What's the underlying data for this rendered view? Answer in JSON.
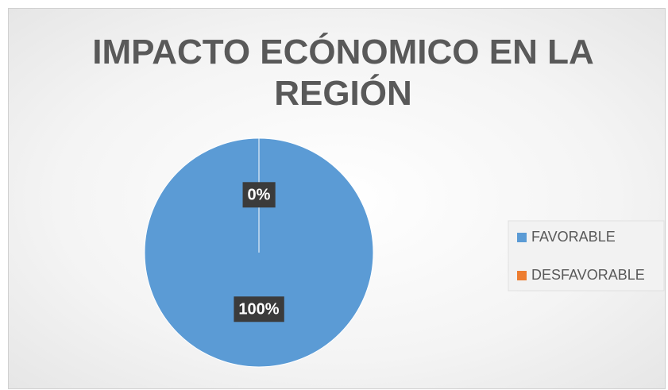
{
  "chart_data": {
    "type": "pie",
    "title": "IMPACTO ECÓNOMICO EN LA REGIÓN",
    "categories": [
      "FAVORABLE",
      "DESFAVORABLE"
    ],
    "values": [
      100,
      0
    ],
    "value_labels": [
      "100%",
      "0%"
    ],
    "colors": [
      "#5b9bd5",
      "#ed7d31"
    ],
    "legend": "right"
  }
}
